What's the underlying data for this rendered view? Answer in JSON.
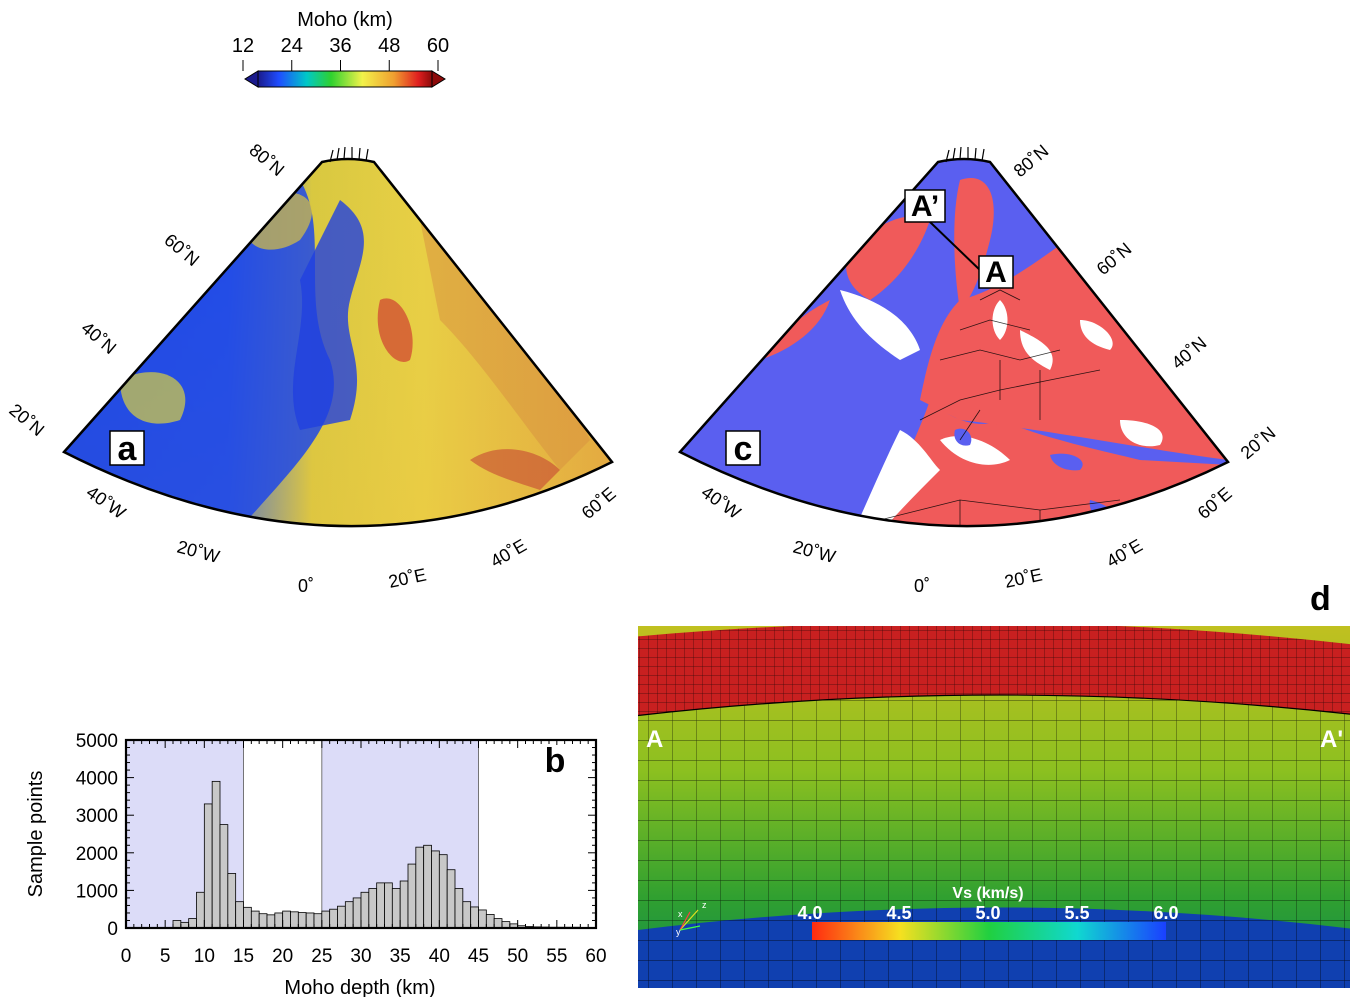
{
  "colorbar": {
    "title": "Moho (km)",
    "ticks": [
      "12",
      "24",
      "36",
      "48",
      "60"
    ]
  },
  "panels": {
    "a": {
      "letter": "a"
    },
    "b": {
      "letter": "b"
    },
    "c": {
      "letter": "c",
      "profile_start": "A",
      "profile_end": "A’"
    },
    "d": {
      "letter": "d",
      "left_label": "A",
      "right_label": "A'",
      "colorbar_title": "Vs (km/s)",
      "colorbar_ticks": [
        "4.0",
        "4.5",
        "5.0",
        "5.5",
        "6.0"
      ],
      "axes_glyphs": [
        "x",
        "z",
        "y"
      ]
    }
  },
  "map_labels": {
    "lat": [
      "80˚N",
      "60˚N",
      "40˚N",
      "20˚N"
    ],
    "lon": [
      "40˚W",
      "20˚W",
      "0˚",
      "20˚E",
      "40˚E",
      "60˚E"
    ]
  },
  "chart_data": {
    "type": "bar",
    "xlabel": "Moho depth (km)",
    "ylabel": "Sample points",
    "xlim": [
      0,
      60
    ],
    "ylim": [
      0,
      5000
    ],
    "xticks": [
      "0",
      "5",
      "10",
      "15",
      "20",
      "25",
      "30",
      "35",
      "40",
      "45",
      "50",
      "55",
      "60"
    ],
    "yticks": [
      "0",
      "1000",
      "2000",
      "3000",
      "4000",
      "5000"
    ],
    "shaded_ranges": [
      [
        0,
        15
      ],
      [
        25,
        45
      ]
    ],
    "bin_width": 1,
    "bins_start": [
      6,
      7,
      8,
      9,
      10,
      11,
      12,
      13,
      14,
      15,
      16,
      17,
      18,
      19,
      20,
      21,
      22,
      23,
      24,
      25,
      26,
      27,
      28,
      29,
      30,
      31,
      32,
      33,
      34,
      35,
      36,
      37,
      38,
      39,
      40,
      41,
      42,
      43,
      44,
      45,
      46,
      47,
      48,
      49,
      50,
      51,
      52,
      53,
      54,
      55,
      56,
      57,
      58,
      59
    ],
    "values": [
      200,
      150,
      250,
      950,
      3300,
      3900,
      2750,
      1450,
      700,
      550,
      450,
      380,
      350,
      400,
      450,
      430,
      410,
      400,
      380,
      450,
      500,
      580,
      700,
      800,
      950,
      1050,
      1200,
      1200,
      1050,
      1250,
      1700,
      2150,
      2200,
      2050,
      1950,
      1550,
      1050,
      700,
      560,
      480,
      360,
      250,
      170,
      110,
      60,
      40,
      30,
      25,
      20,
      20,
      20,
      20,
      15,
      10
    ]
  }
}
